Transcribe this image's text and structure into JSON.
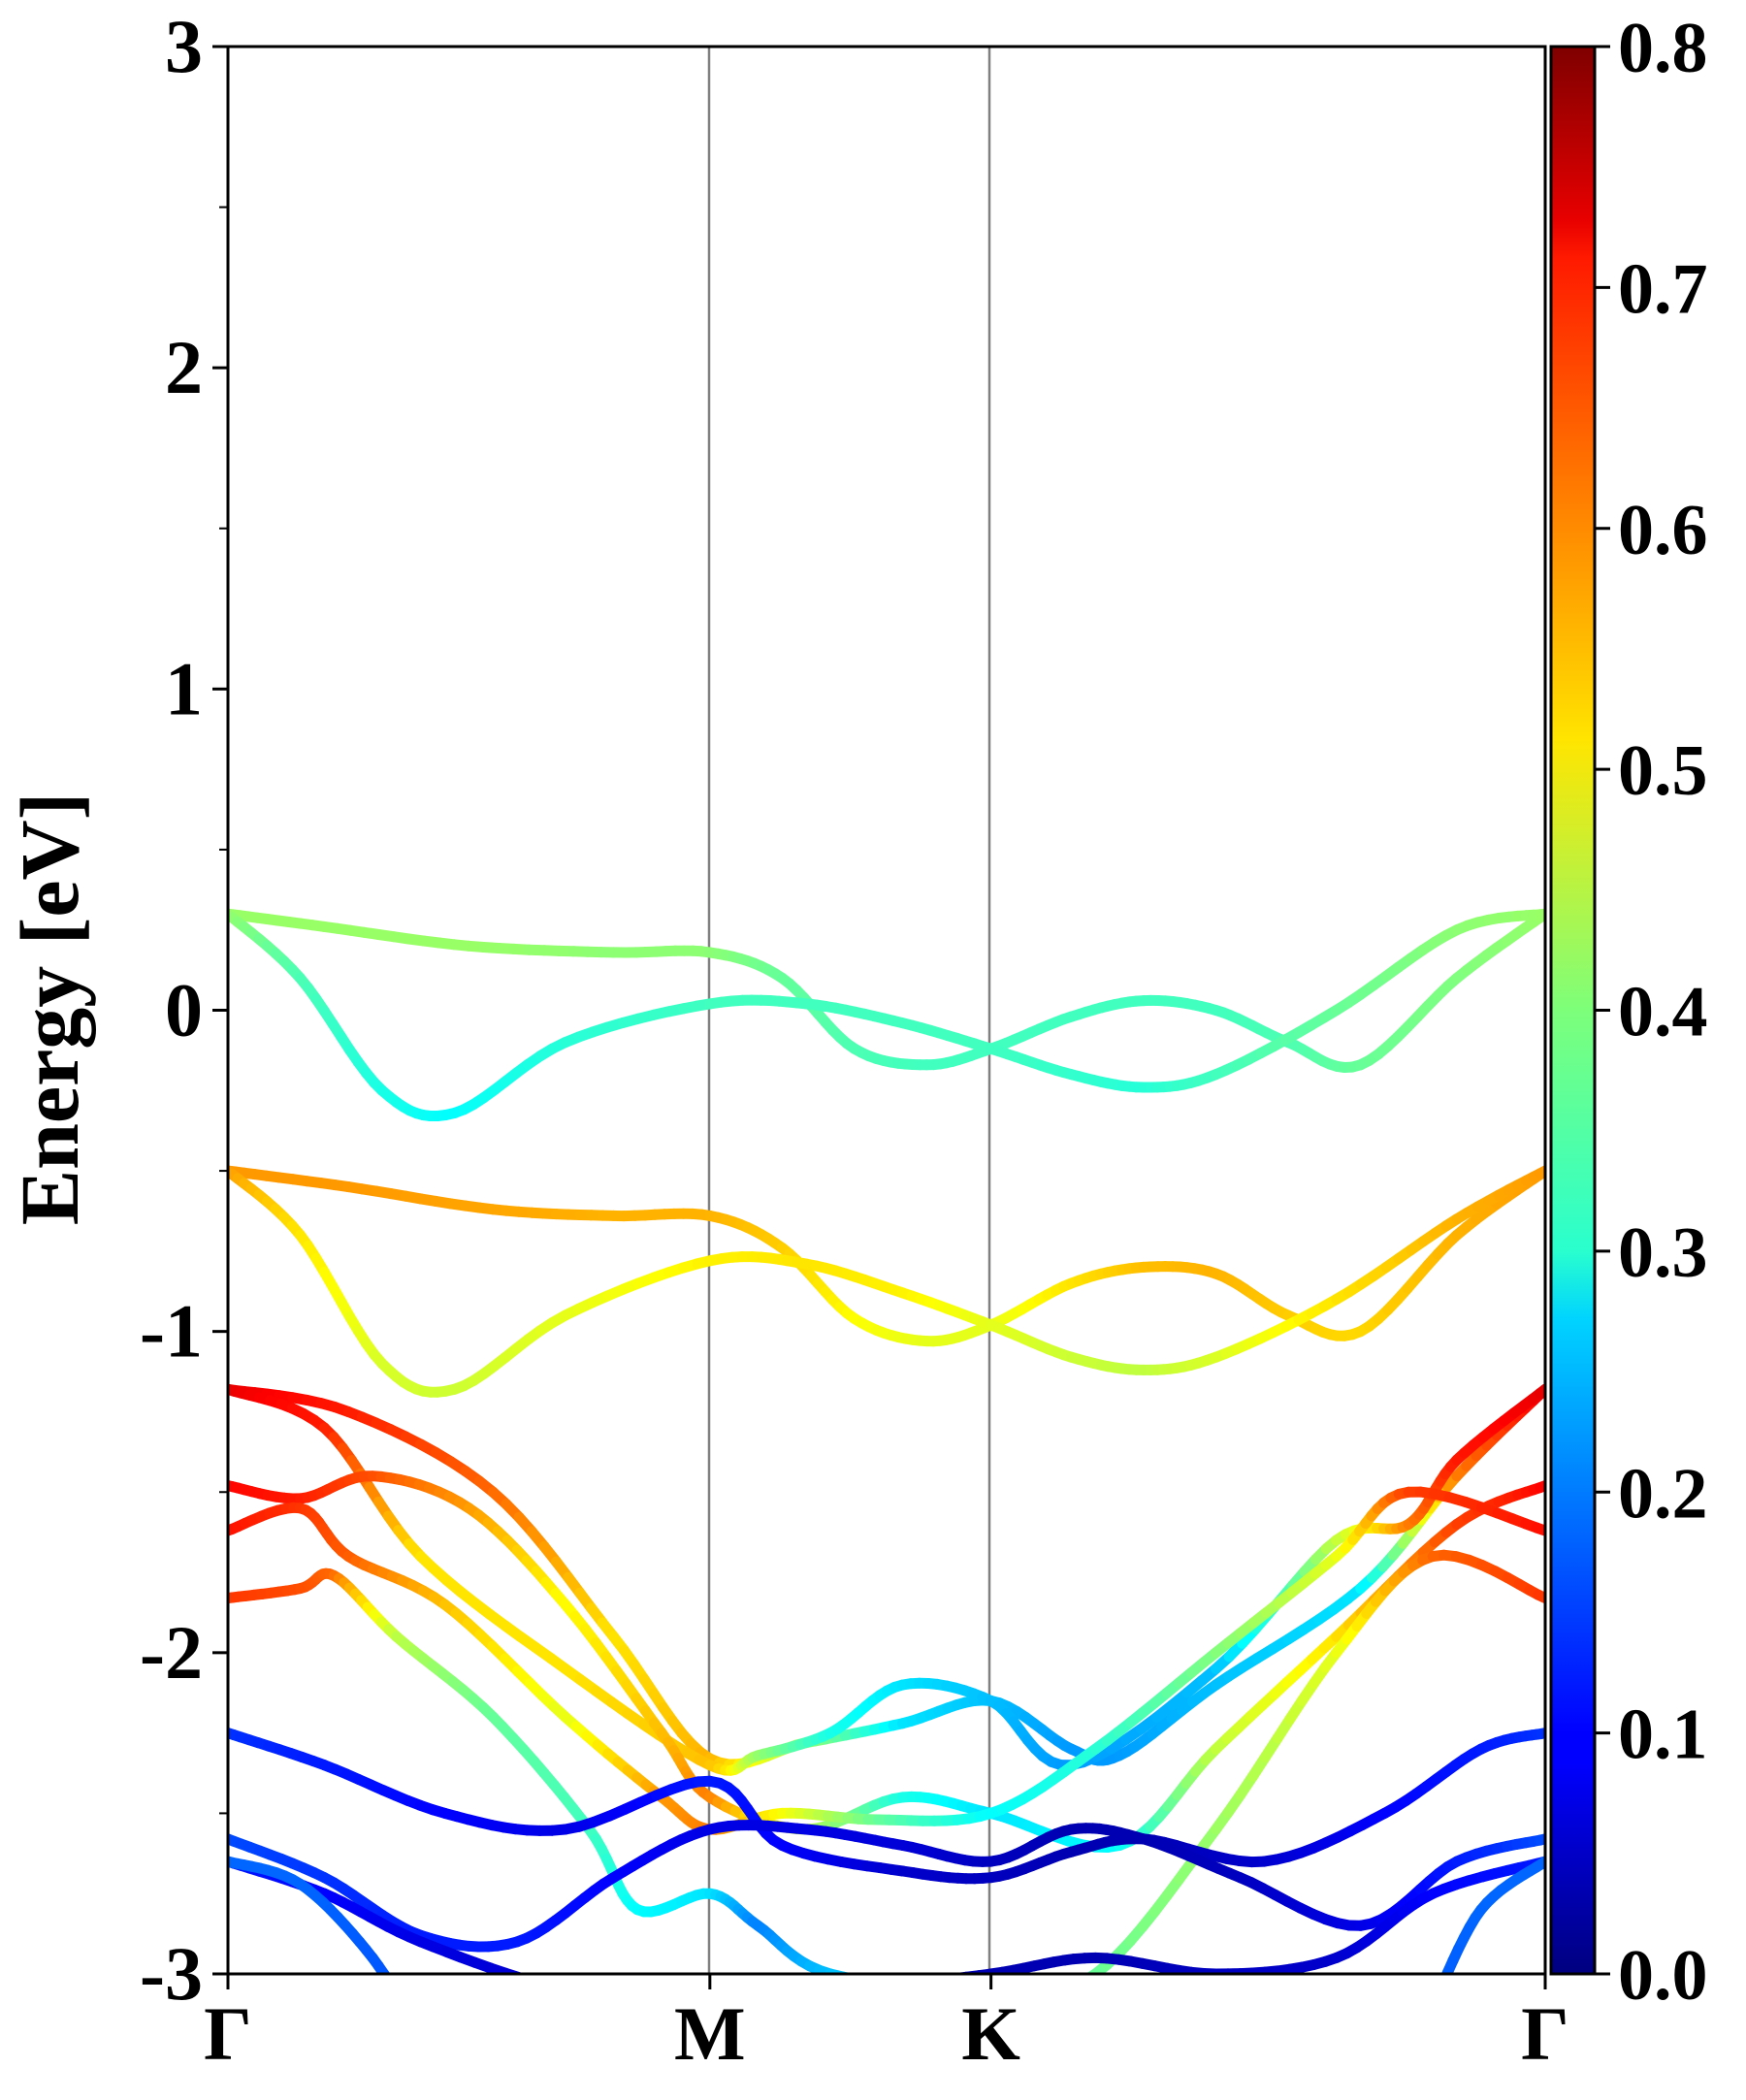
{
  "chart_data": {
    "type": "line",
    "title": "",
    "xlabel": "",
    "ylabel": "Energy [eV]",
    "ylim": [
      -3,
      3
    ],
    "yticks": [
      "-3",
      "-2",
      "-1",
      "0",
      "1",
      "2",
      "3"
    ],
    "kpath": {
      "labels": [
        "Γ",
        "M",
        "K",
        "Γ"
      ],
      "positions": [
        0,
        1,
        1.5833,
        2.7333
      ],
      "xlim": [
        0,
        2.7333
      ]
    },
    "grid": false,
    "legend": "none",
    "colorbar": {
      "colormap": "jet",
      "range": [
        0.0,
        0.8
      ],
      "ticks": [
        "0.0",
        "0.1",
        "0.2",
        "0.3",
        "0.4",
        "0.5",
        "0.6",
        "0.7",
        "0.8"
      ]
    },
    "bands": [
      {
        "points": [
          [
            0,
            0.3
          ],
          [
            0.2,
            0.26
          ],
          [
            0.5,
            0.2
          ],
          [
            0.8,
            0.18
          ],
          [
            1.0,
            0.18
          ],
          [
            1.15,
            0.1
          ],
          [
            1.3,
            -0.12
          ],
          [
            1.45,
            -0.17
          ],
          [
            1.5833,
            -0.12
          ],
          [
            1.75,
            -0.02
          ],
          [
            1.9,
            0.03
          ],
          [
            2.05,
            0.0
          ],
          [
            2.2,
            -0.1
          ],
          [
            2.35,
            -0.17
          ],
          [
            2.55,
            0.1
          ],
          [
            2.7333,
            0.3
          ]
        ],
        "weights": [
          0.42,
          0.42,
          0.42,
          0.41,
          0.41,
          0.38,
          0.36,
          0.35,
          0.35,
          0.35,
          0.35,
          0.35,
          0.36,
          0.38,
          0.4,
          0.42
        ]
      },
      {
        "points": [
          [
            0,
            0.3
          ],
          [
            0.15,
            0.1
          ],
          [
            0.32,
            -0.25
          ],
          [
            0.47,
            -0.32
          ],
          [
            0.7,
            -0.1
          ],
          [
            1.0,
            0.02
          ],
          [
            1.2,
            0.02
          ],
          [
            1.4,
            -0.04
          ],
          [
            1.5833,
            -0.12
          ],
          [
            1.75,
            -0.2
          ],
          [
            1.9,
            -0.24
          ],
          [
            2.05,
            -0.2
          ],
          [
            2.3,
            0.0
          ],
          [
            2.55,
            0.25
          ],
          [
            2.7333,
            0.3
          ]
        ],
        "weights": [
          0.42,
          0.36,
          0.32,
          0.3,
          0.33,
          0.35,
          0.35,
          0.35,
          0.35,
          0.34,
          0.33,
          0.35,
          0.38,
          0.41,
          0.42
        ]
      },
      {
        "points": [
          [
            0,
            -0.5
          ],
          [
            0.25,
            -0.55
          ],
          [
            0.55,
            -0.62
          ],
          [
            0.8,
            -0.64
          ],
          [
            1.0,
            -0.64
          ],
          [
            1.15,
            -0.74
          ],
          [
            1.3,
            -0.96
          ],
          [
            1.45,
            -1.03
          ],
          [
            1.5833,
            -0.98
          ],
          [
            1.75,
            -0.85
          ],
          [
            1.9,
            -0.8
          ],
          [
            2.05,
            -0.82
          ],
          [
            2.2,
            -0.95
          ],
          [
            2.35,
            -1.0
          ],
          [
            2.55,
            -0.7
          ],
          [
            2.7333,
            -0.5
          ]
        ],
        "weights": [
          0.58,
          0.58,
          0.57,
          0.56,
          0.56,
          0.54,
          0.5,
          0.48,
          0.48,
          0.52,
          0.55,
          0.56,
          0.54,
          0.53,
          0.56,
          0.58
        ]
      },
      {
        "points": [
          [
            0,
            -0.5
          ],
          [
            0.15,
            -0.7
          ],
          [
            0.32,
            -1.1
          ],
          [
            0.47,
            -1.18
          ],
          [
            0.7,
            -0.95
          ],
          [
            1.0,
            -0.78
          ],
          [
            1.2,
            -0.79
          ],
          [
            1.4,
            -0.88
          ],
          [
            1.5833,
            -0.98
          ],
          [
            1.75,
            -1.08
          ],
          [
            1.9,
            -1.12
          ],
          [
            2.05,
            -1.08
          ],
          [
            2.3,
            -0.9
          ],
          [
            2.55,
            -0.65
          ],
          [
            2.7333,
            -0.5
          ]
        ],
        "weights": [
          0.58,
          0.52,
          0.47,
          0.46,
          0.48,
          0.51,
          0.52,
          0.51,
          0.48,
          0.46,
          0.45,
          0.47,
          0.52,
          0.56,
          0.58
        ]
      },
      {
        "points": [
          [
            0,
            -1.18
          ],
          [
            0.25,
            -1.25
          ],
          [
            0.55,
            -1.5
          ],
          [
            0.8,
            -1.95
          ],
          [
            1.0,
            -2.33
          ],
          [
            1.2,
            -2.28
          ],
          [
            1.4,
            -2.22
          ],
          [
            1.5833,
            -2.15
          ],
          [
            1.75,
            -2.3
          ],
          [
            1.85,
            -2.32
          ],
          [
            2.05,
            -2.1
          ],
          [
            2.35,
            -1.8
          ],
          [
            2.55,
            -1.45
          ],
          [
            2.7333,
            -1.18
          ]
        ],
        "weights": [
          0.72,
          0.68,
          0.62,
          0.52,
          0.56,
          0.42,
          0.28,
          0.25,
          0.22,
          0.22,
          0.25,
          0.28,
          0.6,
          0.72
        ]
      },
      {
        "points": [
          [
            0,
            -1.18
          ],
          [
            0.2,
            -1.3
          ],
          [
            0.4,
            -1.7
          ],
          [
            0.7,
            -2.05
          ],
          [
            1.0,
            -2.35
          ],
          [
            1.1,
            -2.32
          ],
          [
            1.25,
            -2.25
          ],
          [
            1.4,
            -2.1
          ],
          [
            1.5833,
            -2.15
          ],
          [
            1.75,
            -2.35
          ],
          [
            2.05,
            -2.05
          ],
          [
            2.3,
            -1.65
          ],
          [
            2.45,
            -1.6
          ],
          [
            2.55,
            -1.4
          ],
          [
            2.7333,
            -1.18
          ]
        ],
        "weights": [
          0.72,
          0.68,
          0.52,
          0.52,
          0.55,
          0.42,
          0.32,
          0.28,
          0.25,
          0.22,
          0.25,
          0.45,
          0.6,
          0.68,
          0.72
        ]
      },
      {
        "points": [
          [
            0,
            -1.48
          ],
          [
            0.15,
            -1.52
          ],
          [
            0.3,
            -1.45
          ],
          [
            0.5,
            -1.55
          ],
          [
            0.7,
            -1.85
          ],
          [
            0.9,
            -2.25
          ],
          [
            1.0,
            -2.45
          ],
          [
            1.2,
            -2.55
          ],
          [
            1.4,
            -2.45
          ],
          [
            1.5833,
            -2.5
          ],
          [
            1.85,
            -2.6
          ],
          [
            2.05,
            -2.3
          ],
          [
            2.3,
            -1.95
          ],
          [
            2.55,
            -1.6
          ],
          [
            2.7333,
            -1.48
          ]
        ],
        "weights": [
          0.7,
          0.68,
          0.64,
          0.58,
          0.5,
          0.55,
          0.6,
          0.45,
          0.32,
          0.28,
          0.3,
          0.45,
          0.52,
          0.65,
          0.7
        ]
      },
      {
        "points": [
          [
            0,
            -1.62
          ],
          [
            0.15,
            -1.55
          ],
          [
            0.25,
            -1.7
          ],
          [
            0.45,
            -1.85
          ],
          [
            0.7,
            -2.2
          ],
          [
            0.9,
            -2.45
          ],
          [
            1.0,
            -2.55
          ],
          [
            1.15,
            -2.5
          ],
          [
            1.35,
            -2.52
          ],
          [
            1.5833,
            -2.5
          ],
          [
            1.8,
            -2.3
          ],
          [
            2.05,
            -2.0
          ],
          [
            2.3,
            -1.7
          ],
          [
            2.45,
            -1.5
          ],
          [
            2.7333,
            -1.62
          ]
        ],
        "weights": [
          0.69,
          0.66,
          0.63,
          0.55,
          0.48,
          0.58,
          0.6,
          0.5,
          0.38,
          0.3,
          0.33,
          0.4,
          0.48,
          0.65,
          0.69
        ]
      },
      {
        "points": [
          [
            0,
            -1.83
          ],
          [
            0.15,
            -1.8
          ],
          [
            0.22,
            -1.76
          ],
          [
            0.35,
            -1.95
          ],
          [
            0.55,
            -2.2
          ],
          [
            0.75,
            -2.55
          ],
          [
            0.85,
            -2.8
          ],
          [
            1.0,
            -2.75
          ],
          [
            1.1,
            -2.85
          ],
          [
            1.25,
            -3.0
          ],
          [
            1.5833,
            -3.05
          ],
          [
            1.8,
            -3.0
          ],
          [
            2.05,
            -2.55
          ],
          [
            2.3,
            -2.0
          ],
          [
            2.5,
            -1.7
          ],
          [
            2.7333,
            -1.83
          ]
        ],
        "weights": [
          0.66,
          0.64,
          0.62,
          0.45,
          0.38,
          0.35,
          0.3,
          0.28,
          0.2,
          0.25,
          0.3,
          0.38,
          0.42,
          0.48,
          0.62,
          0.66
        ]
      },
      {
        "points": [
          [
            0,
            -2.25
          ],
          [
            0.2,
            -2.35
          ],
          [
            0.45,
            -2.5
          ],
          [
            0.7,
            -2.55
          ],
          [
            1.0,
            -2.4
          ],
          [
            1.15,
            -2.6
          ],
          [
            1.4,
            -2.68
          ],
          [
            1.5833,
            -2.7
          ],
          [
            1.75,
            -2.62
          ],
          [
            1.9,
            -2.58
          ],
          [
            2.15,
            -2.65
          ],
          [
            2.4,
            -2.5
          ],
          [
            2.6,
            -2.3
          ],
          [
            2.7333,
            -2.25
          ]
        ],
        "weights": [
          0.14,
          0.12,
          0.1,
          0.08,
          0.12,
          0.1,
          0.06,
          0.05,
          0.04,
          0.04,
          0.06,
          0.1,
          0.12,
          0.14
        ]
      },
      {
        "points": [
          [
            0,
            -2.58
          ],
          [
            0.2,
            -2.7
          ],
          [
            0.4,
            -2.88
          ],
          [
            0.6,
            -2.9
          ],
          [
            0.8,
            -2.7
          ],
          [
            1.0,
            -2.55
          ],
          [
            1.2,
            -2.55
          ],
          [
            1.4,
            -2.6
          ],
          [
            1.5833,
            -2.65
          ],
          [
            1.75,
            -2.55
          ],
          [
            1.9,
            -2.58
          ],
          [
            2.1,
            -2.7
          ],
          [
            2.35,
            -2.85
          ],
          [
            2.55,
            -2.65
          ],
          [
            2.7333,
            -2.58
          ]
        ],
        "weights": [
          0.16,
          0.14,
          0.12,
          0.12,
          0.1,
          0.08,
          0.08,
          0.07,
          0.05,
          0.04,
          0.04,
          0.05,
          0.08,
          0.12,
          0.16
        ]
      },
      {
        "points": [
          [
            0,
            -2.65
          ],
          [
            0.2,
            -2.75
          ],
          [
            0.4,
            -2.9
          ],
          [
            0.7,
            -3.05
          ],
          [
            1.0,
            -3.1
          ],
          [
            1.3,
            -3.05
          ],
          [
            1.5833,
            -3.0
          ],
          [
            1.8,
            -2.95
          ],
          [
            2.05,
            -3.0
          ],
          [
            2.3,
            -2.95
          ],
          [
            2.5,
            -2.75
          ],
          [
            2.7333,
            -2.65
          ]
        ],
        "weights": [
          0.12,
          0.1,
          0.08,
          0.06,
          0.05,
          0.05,
          0.04,
          0.04,
          0.05,
          0.06,
          0.1,
          0.12
        ]
      },
      {
        "points": [
          [
            0,
            -2.65
          ],
          [
            0.15,
            -2.72
          ],
          [
            0.3,
            -2.95
          ],
          [
            0.4,
            -3.2
          ]
        ],
        "weights": [
          0.18,
          0.18,
          0.17,
          0.16
        ]
      },
      {
        "points": [
          [
            2.7333,
            -2.65
          ],
          [
            2.6,
            -2.8
          ],
          [
            2.5,
            -3.1
          ]
        ],
        "weights": [
          0.18,
          0.18,
          0.17
        ]
      }
    ]
  }
}
